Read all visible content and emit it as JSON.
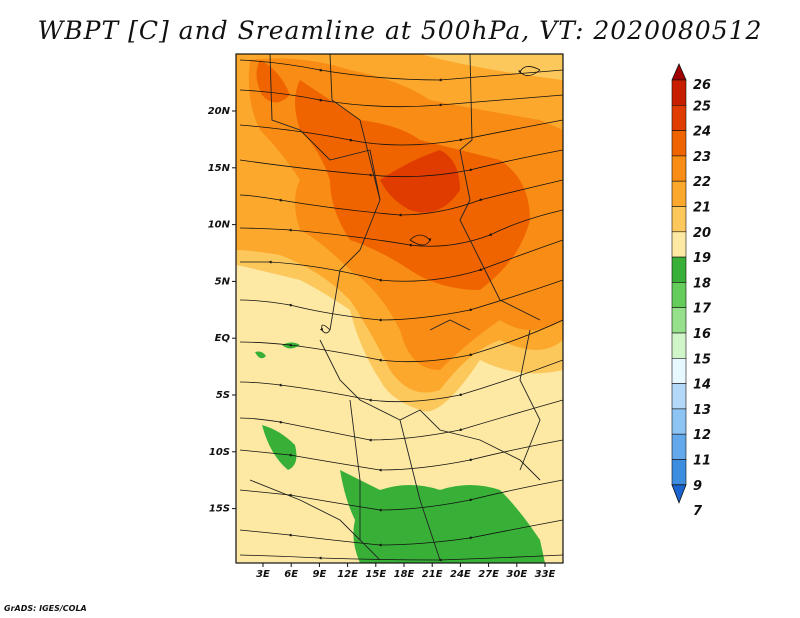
{
  "title": "WBPT [C] and Sreamline at 500hPa, VT: 2020080512",
  "credit": "GrADS: IGES/COLA",
  "map": {
    "lat_labels": [
      "20N",
      "15N",
      "10N",
      "5N",
      "EQ",
      "5S",
      "10S",
      "15S"
    ],
    "lon_labels": [
      "3E",
      "6E",
      "9E",
      "12E",
      "15E",
      "18E",
      "21E",
      "24E",
      "27E",
      "30E",
      "33E"
    ],
    "field": "wet-bulb potential temperature (shaded) and 500hPa streamlines"
  },
  "colorbar": {
    "labels": [
      "26",
      "25",
      "24",
      "23",
      "22",
      "21",
      "20",
      "19",
      "18",
      "17",
      "16",
      "15",
      "14",
      "13",
      "12",
      "11",
      "9",
      "7"
    ],
    "colors": [
      "#a00000",
      "#c81e00",
      "#e03c00",
      "#f06400",
      "#f88c14",
      "#fca82c",
      "#fcc85c",
      "#fde9a3",
      "#38b038",
      "#64cc5a",
      "#96e08c",
      "#d0f5c8",
      "#e8f8ff",
      "#b4d8f8",
      "#8ec4f4",
      "#64a8ec",
      "#3c8ce0",
      "#1a64d0"
    ]
  }
}
